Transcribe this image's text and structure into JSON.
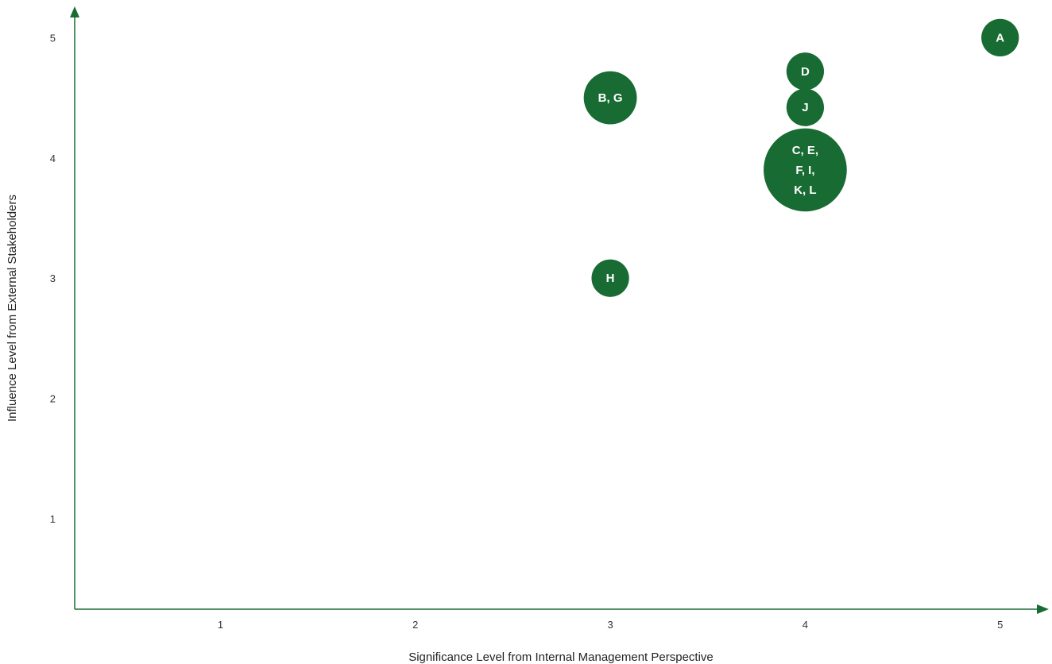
{
  "chart_data": {
    "type": "scatter",
    "title": "",
    "xlabel": "Significance Level from Internal Management Perspective",
    "ylabel": "Influence Level from External Stakeholders",
    "xlim": [
      0.25,
      5.25
    ],
    "ylim": [
      0.25,
      5.25
    ],
    "x_ticks": [
      "1",
      "2",
      "3",
      "4",
      "5"
    ],
    "y_ticks": [
      "1",
      "2",
      "3",
      "4",
      "5"
    ],
    "grid": false,
    "bubble_color": "#186b33",
    "axis_color": "#186b33",
    "points": [
      {
        "label_lines": [
          "A"
        ],
        "x": 5,
        "y": 5.0,
        "size": 1
      },
      {
        "label_lines": [
          "D"
        ],
        "x": 4,
        "y": 4.72,
        "size": 1
      },
      {
        "label_lines": [
          "B, G"
        ],
        "x": 3,
        "y": 4.5,
        "size": 2
      },
      {
        "label_lines": [
          "J"
        ],
        "x": 4,
        "y": 4.42,
        "size": 1
      },
      {
        "label_lines": [
          "C, E,",
          "F, I,",
          "K, L"
        ],
        "x": 4,
        "y": 3.9,
        "size": 6
      },
      {
        "label_lines": [
          "H"
        ],
        "x": 3,
        "y": 3.0,
        "size": 1
      }
    ]
  }
}
